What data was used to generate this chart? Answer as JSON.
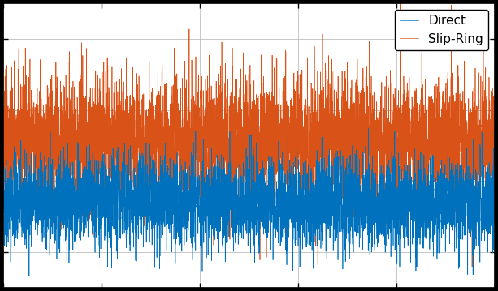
{
  "title": "",
  "xlabel": "",
  "ylabel": "",
  "xlim": [
    0,
    1000
  ],
  "direct_color": "#0072BD",
  "slipring_color": "#D95319",
  "legend_labels": [
    "Direct",
    "Slip-Ring"
  ],
  "n_points": 5000,
  "direct_std": 0.32,
  "direct_mean": -0.3,
  "slipring_std": 0.45,
  "slipring_mean": 0.55,
  "seed": 42,
  "grid": true,
  "grid_color": "#b0b0b0",
  "background_color": "#ffffff",
  "fig_background_color": "#000000",
  "figsize": [
    6.13,
    3.59
  ],
  "dpi": 100,
  "legend_fontsize": 11,
  "ylim": [
    -1.5,
    2.5
  ],
  "xtick_spacing": 200,
  "ytick_spacing": 1
}
